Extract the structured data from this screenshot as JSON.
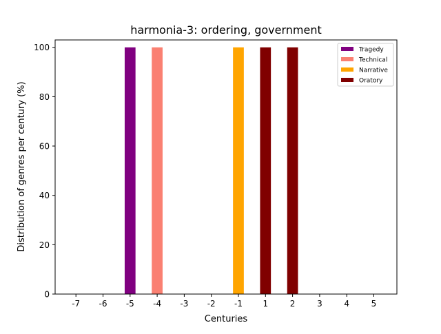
{
  "chart_data": {
    "type": "bar",
    "title": "harmonia-3: ordering, government",
    "xlabel": "Centuries",
    "ylabel": "Distribution of genres per century (%)",
    "categories": [
      "-7",
      "-6",
      "-5",
      "-4",
      "-3",
      "-2",
      "-1",
      "1",
      "2",
      "3",
      "4",
      "5"
    ],
    "ylim": [
      0,
      103
    ],
    "yticks": [
      0,
      20,
      40,
      60,
      80,
      100
    ],
    "stacked": true,
    "grid": false,
    "legend_position": "top-right",
    "series": [
      {
        "name": "Tragedy",
        "color": "#800080",
        "values": [
          0,
          0,
          100,
          0,
          0,
          0,
          0,
          0,
          0,
          0,
          0,
          0
        ]
      },
      {
        "name": "Technical",
        "color": "#fa8072",
        "values": [
          0,
          0,
          0,
          100,
          0,
          0,
          0,
          0,
          0,
          0,
          0,
          0
        ]
      },
      {
        "name": "Narrative",
        "color": "#ffa500",
        "values": [
          0,
          0,
          0,
          0,
          0,
          0,
          100,
          0,
          0,
          0,
          0,
          0
        ]
      },
      {
        "name": "Oratory",
        "color": "#800000",
        "values": [
          0,
          0,
          0,
          0,
          0,
          0,
          0,
          100,
          100,
          0,
          0,
          0
        ]
      }
    ]
  }
}
